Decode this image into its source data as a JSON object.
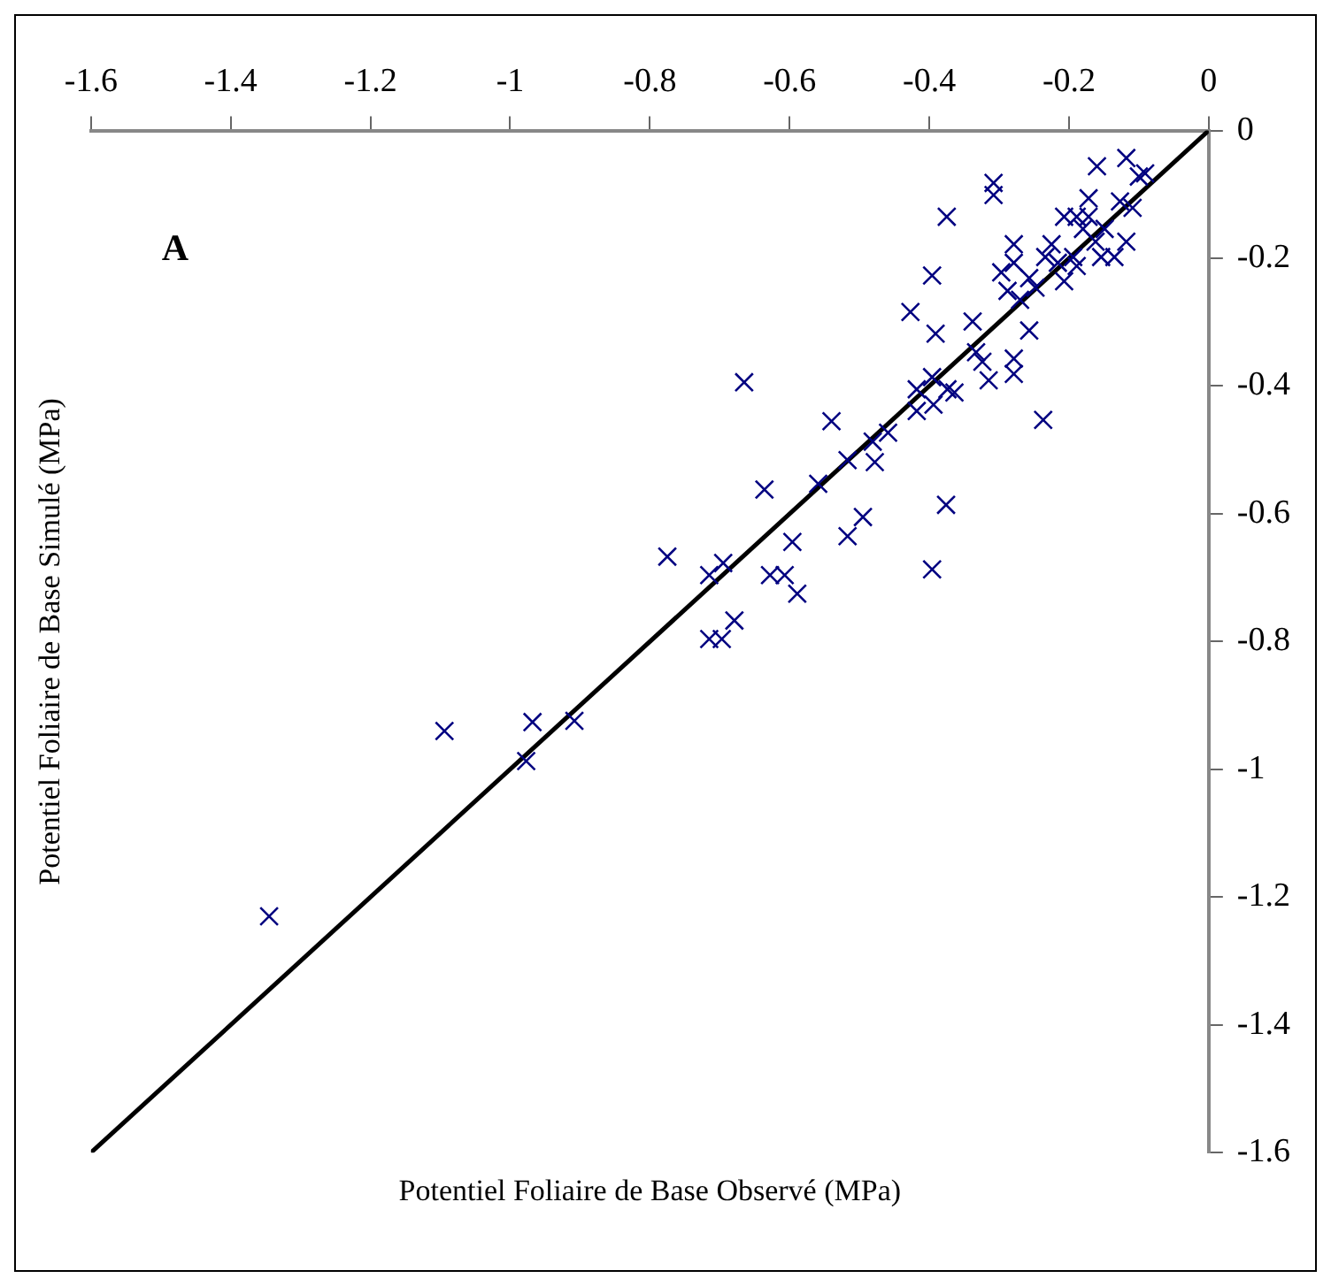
{
  "chart_data": {
    "type": "scatter",
    "xlabel": "Potentiel Foliaire de Base Observé (MPa)",
    "ylabel": "Potentiel Foliaire de Base Simulé (MPa)",
    "annotations": [
      "A"
    ],
    "xlim": [
      -1.6,
      0
    ],
    "ylim": [
      -1.6,
      0
    ],
    "xticks": [
      -1.6,
      -1.4,
      -1.2,
      -1,
      -0.8,
      -0.6,
      -0.4,
      -0.2,
      0
    ],
    "yticks": [
      -1.6,
      -1.4,
      -1.2,
      -1,
      -0.8,
      -0.6,
      -0.4,
      -0.2,
      0
    ],
    "grid": false,
    "legend": false,
    "series": [
      {
        "color": "#000080",
        "marker": "cross",
        "x": [
          -1.345,
          -1.094,
          -0.968,
          -0.977,
          -0.908,
          -0.665,
          -0.54,
          -0.418,
          -0.396,
          -0.374,
          -0.364,
          -0.315,
          -0.418,
          -0.394,
          -0.481,
          -0.459,
          -0.517,
          -0.478,
          -0.559,
          -0.636,
          -0.495,
          -0.517,
          -0.376,
          -0.396,
          -0.596,
          -0.775,
          -0.695,
          -0.715,
          -0.628,
          -0.607,
          -0.589,
          -0.679,
          -0.715,
          -0.697,
          -0.118,
          -0.16,
          -0.1,
          -0.091,
          -0.308,
          -0.308,
          -0.375,
          -0.172,
          -0.207,
          -0.189,
          -0.172,
          -0.127,
          -0.109,
          -0.149,
          -0.18,
          -0.118,
          -0.279,
          -0.225,
          -0.162,
          -0.154,
          -0.135,
          -0.194,
          -0.234,
          -0.279,
          -0.216,
          -0.297,
          -0.396,
          -0.189,
          -0.257,
          -0.207,
          -0.248,
          -0.288,
          -0.27,
          -0.427,
          -0.338,
          -0.391,
          -0.257,
          -0.279,
          -0.333,
          -0.324,
          -0.279,
          -0.237
        ],
        "values": [
          -1.23,
          -0.94,
          -0.926,
          -0.987,
          -0.924,
          -0.394,
          -0.455,
          -0.405,
          -0.386,
          -0.405,
          -0.41,
          -0.391,
          -0.439,
          -0.429,
          -0.487,
          -0.473,
          -0.516,
          -0.519,
          -0.553,
          -0.562,
          -0.605,
          -0.635,
          -0.586,
          -0.687,
          -0.644,
          -0.667,
          -0.677,
          -0.696,
          -0.696,
          -0.696,
          -0.725,
          -0.767,
          -0.796,
          -0.796,
          -0.043,
          -0.056,
          -0.072,
          -0.067,
          -0.082,
          -0.101,
          -0.135,
          -0.106,
          -0.135,
          -0.135,
          -0.135,
          -0.111,
          -0.121,
          -0.154,
          -0.154,
          -0.174,
          -0.178,
          -0.178,
          -0.174,
          -0.198,
          -0.198,
          -0.198,
          -0.198,
          -0.207,
          -0.207,
          -0.222,
          -0.227,
          -0.212,
          -0.231,
          -0.236,
          -0.246,
          -0.251,
          -0.265,
          -0.284,
          -0.299,
          -0.318,
          -0.313,
          -0.357,
          -0.347,
          -0.362,
          -0.381,
          -0.453
        ]
      },
      {
        "type": "line",
        "color": "#000000",
        "marker": "none",
        "line_style": "solid",
        "x": [
          -1.6,
          0
        ],
        "values": [
          -1.6,
          0
        ]
      }
    ]
  }
}
